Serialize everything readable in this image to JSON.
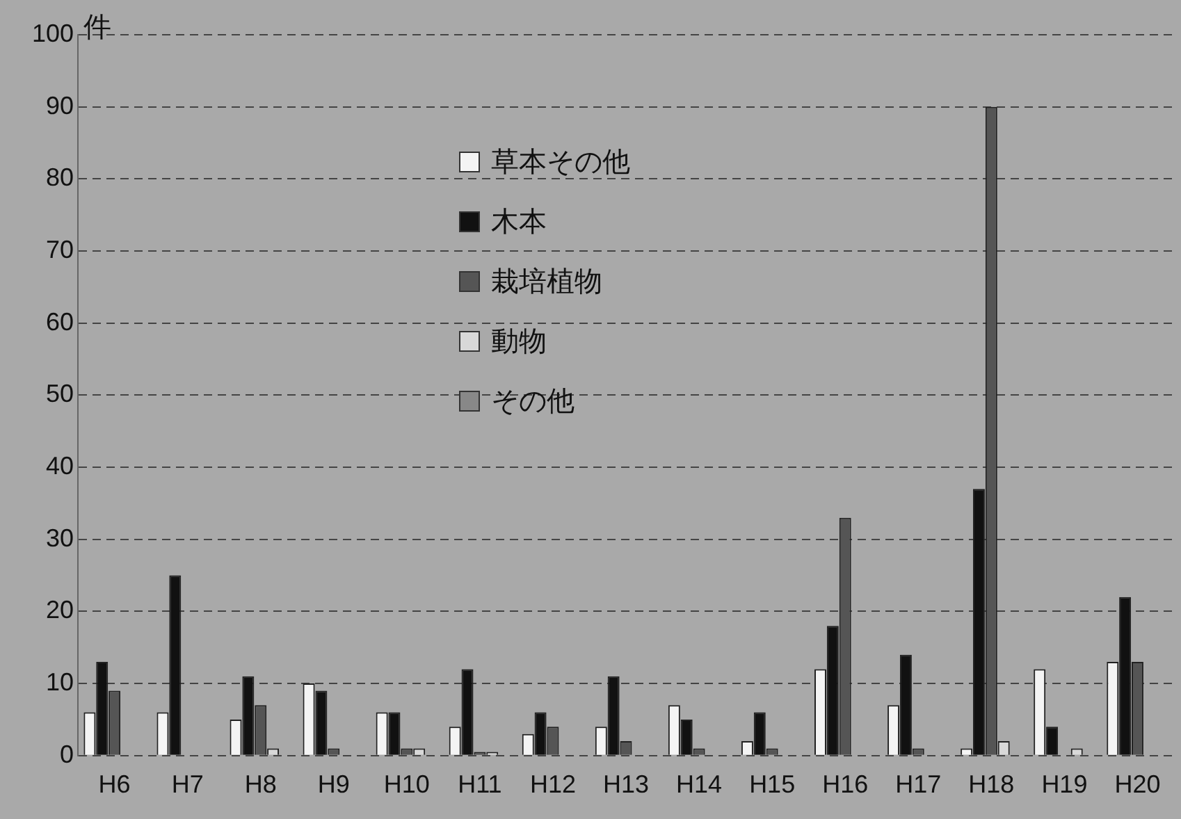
{
  "chart_data": {
    "type": "bar",
    "ylabel": "件",
    "categories": [
      "H6",
      "H7",
      "H8",
      "H9",
      "H10",
      "H11",
      "H12",
      "H13",
      "H14",
      "H15",
      "H16",
      "H17",
      "H18",
      "H19",
      "H20"
    ],
    "series": [
      {
        "name": "草本その他",
        "color": "#f4f4f4",
        "values": [
          6,
          6,
          5,
          10,
          6,
          4,
          3,
          4,
          7,
          2,
          12,
          7,
          1,
          12,
          13
        ]
      },
      {
        "name": "木本",
        "color": "#111111",
        "values": [
          13,
          25,
          11,
          9,
          6,
          12,
          6,
          11,
          5,
          6,
          18,
          14,
          37,
          4,
          22
        ]
      },
      {
        "name": "栽培植物",
        "color": "#555555",
        "values": [
          9,
          0,
          7,
          1,
          1,
          0.5,
          4,
          2,
          1,
          1,
          33,
          1,
          90,
          0,
          13
        ]
      },
      {
        "name": "動物",
        "color": "#d8d8d8",
        "values": [
          0,
          0,
          1,
          0,
          1,
          0.5,
          0,
          0,
          0,
          0,
          0,
          0,
          2,
          1,
          0
        ]
      },
      {
        "name": "その他",
        "color": "#888888",
        "values": [
          0,
          0,
          0,
          0,
          0,
          0,
          0,
          0,
          0,
          0,
          0,
          0,
          null,
          0,
          0
        ]
      }
    ],
    "ylim": [
      0,
      100
    ],
    "yticks": [
      0,
      10,
      20,
      30,
      40,
      50,
      60,
      70,
      80,
      90,
      100
    ],
    "grid": "y",
    "legend": "top left"
  }
}
